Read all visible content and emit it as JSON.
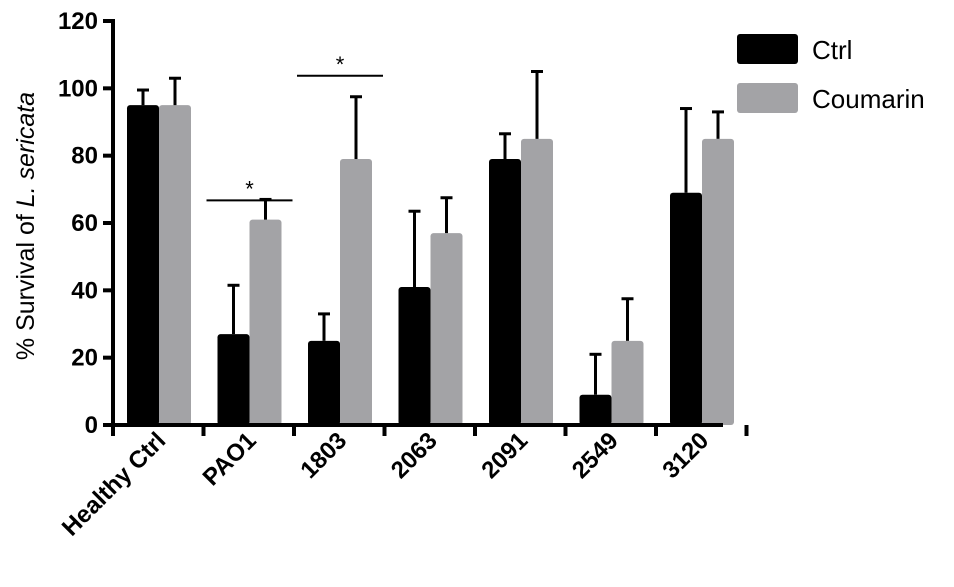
{
  "chart_data": {
    "type": "bar",
    "title": "",
    "xlabel": "",
    "ylabel_parts": [
      "% Survival of ",
      "L. sericata"
    ],
    "ylim": [
      0,
      120
    ],
    "yticks": [
      "0",
      "20",
      "40",
      "60",
      "80",
      "100",
      "120"
    ],
    "categories": [
      "Healthy Ctrl",
      "PAO1",
      "1803",
      "2063",
      "2091",
      "2549",
      "3120"
    ],
    "series": [
      {
        "name": "Ctrl",
        "color": "#000000",
        "values": [
          95,
          27,
          25,
          41,
          79,
          9,
          69
        ],
        "errors": [
          4.5,
          14.5,
          8,
          22.5,
          7.5,
          12,
          25
        ]
      },
      {
        "name": "Coumarin",
        "color": "#a3a3a6",
        "values": [
          95,
          61,
          79,
          57,
          85,
          25,
          85
        ],
        "errors": [
          8,
          6,
          18.5,
          10.5,
          20,
          12.5,
          8
        ]
      }
    ],
    "significance": [
      {
        "category": "PAO1",
        "label": "*"
      },
      {
        "category": "1803",
        "label": "*"
      }
    ],
    "legend": {
      "position": "top-right",
      "entries": [
        "Ctrl",
        "Coumarin"
      ]
    },
    "grid": false
  }
}
